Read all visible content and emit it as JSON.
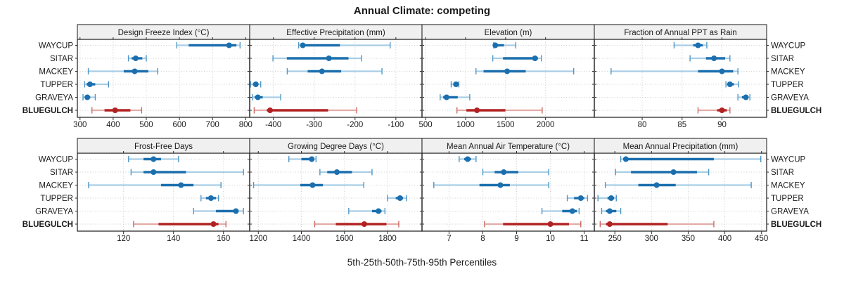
{
  "title": "Annual Climate: competing",
  "caption": "5th-25th-50th-75th-95th Percentiles",
  "chart_data": {
    "type": "dotplot",
    "title": "Annual Climate: competing",
    "xlabel": "5th-25th-50th-75th-95th Percentiles",
    "percentiles": [
      5,
      25,
      50,
      75,
      95
    ],
    "grid": "dotted",
    "legend_position": "none",
    "sites": [
      "WAYCUP",
      "SITAR",
      "MACKEY",
      "TUPPER",
      "GRAVEYA",
      "BLUEGULCH"
    ],
    "highlight_site": "BLUEGULCH",
    "colors": {
      "series_main": "#1b6fae",
      "series_light": "#a8cde6",
      "series_cap": "#4f97c6",
      "highlight_main": "#b22222",
      "highlight_light": "#e4aba8",
      "highlight_cap": "#c96a62",
      "strip_bg": "#f0f0f0",
      "border": "#2b2b2b",
      "gridline": "#cbcbcb"
    },
    "panels": [
      {
        "title": "Design Freeze Index (°C)",
        "grid_row": 1,
        "grid_col": 1,
        "xlim": [
          292,
          812
        ],
        "ticks": [
          300,
          400,
          500,
          600,
          700,
          800
        ],
        "series": {
          "WAYCUP": [
            592,
            628,
            750,
            772,
            783
          ],
          "SITAR": [
            446,
            456,
            468,
            488,
            500
          ],
          "MACKEY": [
            325,
            432,
            465,
            506,
            534
          ],
          "TUPPER": [
            314,
            320,
            330,
            346,
            386
          ],
          "GRAVEYA": [
            309,
            315,
            322,
            331,
            346
          ],
          "BLUEGULCH": [
            336,
            374,
            406,
            452,
            486
          ]
        }
      },
      {
        "title": "Effective Precipitation (mm)",
        "grid_row": 1,
        "grid_col": 2,
        "xlim": [
          -458,
          -36
        ],
        "ticks": [
          -400,
          -300,
          -200,
          -100
        ],
        "series": {
          "WAYCUP": [
            -338,
            -333,
            -328,
            -237,
            -114
          ],
          "SITAR": [
            -401,
            -367,
            -264,
            -216,
            -184
          ],
          "MACKEY": [
            -366,
            -316,
            -281,
            -234,
            -134
          ],
          "TUPPER": [
            -456,
            -450,
            -443,
            -438,
            -431
          ],
          "GRAVEYA": [
            -451,
            -446,
            -438,
            -426,
            -382
          ],
          "BLUEGULCH": [
            -447,
            -416,
            -408,
            -266,
            -196
          ]
        }
      },
      {
        "title": "Elevation (m)",
        "grid_row": 1,
        "grid_col": 3,
        "xlim": [
          455,
          2610
        ],
        "ticks": [
          500,
          1000,
          1500,
          2000
        ],
        "series": {
          "WAYCUP": [
            1352,
            1358,
            1372,
            1480,
            1628
          ],
          "SITAR": [
            1340,
            1468,
            1868,
            1905,
            1948
          ],
          "MACKEY": [
            1130,
            1225,
            1520,
            1752,
            2352
          ],
          "TUPPER": [
            820,
            846,
            880,
            902,
            916
          ],
          "GRAVEYA": [
            682,
            720,
            762,
            902,
            1052
          ],
          "BLUEGULCH": [
            892,
            1010,
            1142,
            1498,
            1958
          ]
        }
      },
      {
        "title": "Fraction of Annual PPT as Rain",
        "grid_row": 1,
        "grid_col": 4,
        "xlim": [
          74,
          95.6
        ],
        "ticks": [
          80,
          85,
          90
        ],
        "series": {
          "WAYCUP": [
            84.0,
            86.4,
            87.0,
            87.6,
            88.1
          ],
          "SITAR": [
            86.0,
            88.0,
            89.0,
            90.4,
            91.0
          ],
          "MACKEY": [
            76.1,
            87.0,
            90.0,
            91.4,
            92.0
          ],
          "TUPPER": [
            90.5,
            90.8,
            91.0,
            91.5,
            92.1
          ],
          "GRAVEYA": [
            92.0,
            92.5,
            93.0,
            93.2,
            93.5
          ],
          "BLUEGULCH": [
            87.0,
            89.4,
            90.0,
            90.6,
            91.0
          ]
        }
      },
      {
        "title": "Frost-Free Days",
        "grid_row": 2,
        "grid_col": 1,
        "xlim": [
          101.5,
          170.5
        ],
        "ticks": [
          120,
          140,
          160
        ],
        "series": {
          "WAYCUP": [
            122,
            128,
            132,
            135,
            142
          ],
          "SITAR": [
            123,
            128,
            132,
            145,
            168
          ],
          "MACKEY": [
            106,
            135,
            143,
            148,
            159
          ],
          "TUPPER": [
            151,
            153,
            155,
            157,
            158
          ],
          "GRAVEYA": [
            148,
            157,
            165,
            166,
            168
          ],
          "BLUEGULCH": [
            124,
            134,
            156,
            158,
            161
          ]
        }
      },
      {
        "title": "Growing Degree Days (°C)",
        "grid_row": 2,
        "grid_col": 2,
        "xlim": [
          1160,
          1960
        ],
        "ticks": [
          1200,
          1400,
          1600,
          1800
        ],
        "series": {
          "WAYCUP": [
            1342,
            1400,
            1448,
            1458,
            1468
          ],
          "SITAR": [
            1486,
            1520,
            1565,
            1635,
            1728
          ],
          "MACKEY": [
            1178,
            1395,
            1452,
            1500,
            1690
          ],
          "TUPPER": [
            1800,
            1838,
            1858,
            1872,
            1888
          ],
          "GRAVEYA": [
            1620,
            1728,
            1758,
            1772,
            1788
          ],
          "BLUEGULCH": [
            1462,
            1560,
            1692,
            1795,
            1852
          ]
        }
      },
      {
        "title": "Mean Annual Air Temperature (°C)",
        "grid_row": 2,
        "grid_col": 3,
        "xlim": [
          6.2,
          11.3
        ],
        "ticks": [
          7,
          8,
          9,
          10,
          11
        ],
        "series": {
          "WAYCUP": [
            7.3,
            7.45,
            7.55,
            7.65,
            7.8
          ],
          "SITAR": [
            8.0,
            8.35,
            8.62,
            9.05,
            9.95
          ],
          "MACKEY": [
            6.55,
            7.9,
            8.52,
            8.8,
            9.95
          ],
          "TUPPER": [
            10.5,
            10.7,
            10.9,
            11.0,
            11.1
          ],
          "GRAVEYA": [
            9.75,
            10.35,
            10.65,
            10.78,
            10.85
          ],
          "BLUEGULCH": [
            8.05,
            8.6,
            10.0,
            10.55,
            10.9
          ]
        }
      },
      {
        "title": "Mean Annual Precipitation (mm)",
        "grid_row": 2,
        "grid_col": 4,
        "xlim": [
          222,
          457
        ],
        "ticks": [
          250,
          300,
          350,
          400,
          450
        ],
        "series": {
          "WAYCUP": [
            258,
            262,
            265,
            385,
            449
          ],
          "SITAR": [
            251,
            272,
            330,
            362,
            378
          ],
          "MACKEY": [
            237,
            282,
            307,
            333,
            436
          ],
          "TUPPER": [
            227,
            240,
            245,
            249,
            252
          ],
          "GRAVEYA": [
            232,
            238,
            243,
            252,
            258
          ],
          "BLUEGULCH": [
            230,
            238,
            243,
            322,
            385
          ]
        }
      }
    ]
  }
}
